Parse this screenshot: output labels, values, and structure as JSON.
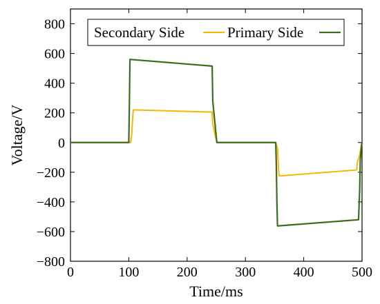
{
  "chart_data": {
    "type": "line",
    "title": "",
    "xlabel": "Time/ms",
    "ylabel": "Voltage/V",
    "xlim": [
      0,
      500
    ],
    "ylim": [
      -800,
      900
    ],
    "xticks": [
      0,
      100,
      200,
      300,
      400,
      500
    ],
    "yticks": [
      -800,
      -600,
      -400,
      -200,
      0,
      200,
      400,
      600,
      800
    ],
    "xtick_labels": [
      "0",
      "100",
      "200",
      "300",
      "400",
      "500"
    ],
    "ytick_labels": [
      "−800",
      "−600",
      "−400",
      "−200",
      "0",
      "200",
      "400",
      "600",
      "800"
    ],
    "grid": false,
    "legend": "top",
    "series": [
      {
        "name": "Secondary Side",
        "color": "#F5B800",
        "x": [
          0,
          100,
          103,
          105,
          107,
          108,
          243,
          244,
          245,
          248,
          250,
          251,
          254,
          350,
          352,
          355,
          357,
          358,
          490,
          491,
          492,
          495,
          497,
          499,
          500
        ],
        "y": [
          0,
          0,
          0,
          50,
          190,
          220,
          205,
          120,
          110,
          50,
          20,
          5,
          0,
          0,
          -5,
          -40,
          -190,
          -225,
          -185,
          -180,
          -130,
          -100,
          -60,
          -20,
          0
        ]
      },
      {
        "name": "Primary Side",
        "color": "#3E6B1E",
        "x": [
          0,
          100,
          101,
          102,
          243,
          244,
          246,
          248,
          250,
          251,
          352,
          353,
          354,
          355,
          494,
          495,
          496,
          497,
          499,
          500
        ],
        "y": [
          0,
          0,
          250,
          560,
          515,
          280,
          200,
          120,
          40,
          0,
          0,
          -150,
          -400,
          -562,
          -520,
          -420,
          -320,
          -120,
          -20,
          0
        ]
      }
    ]
  }
}
